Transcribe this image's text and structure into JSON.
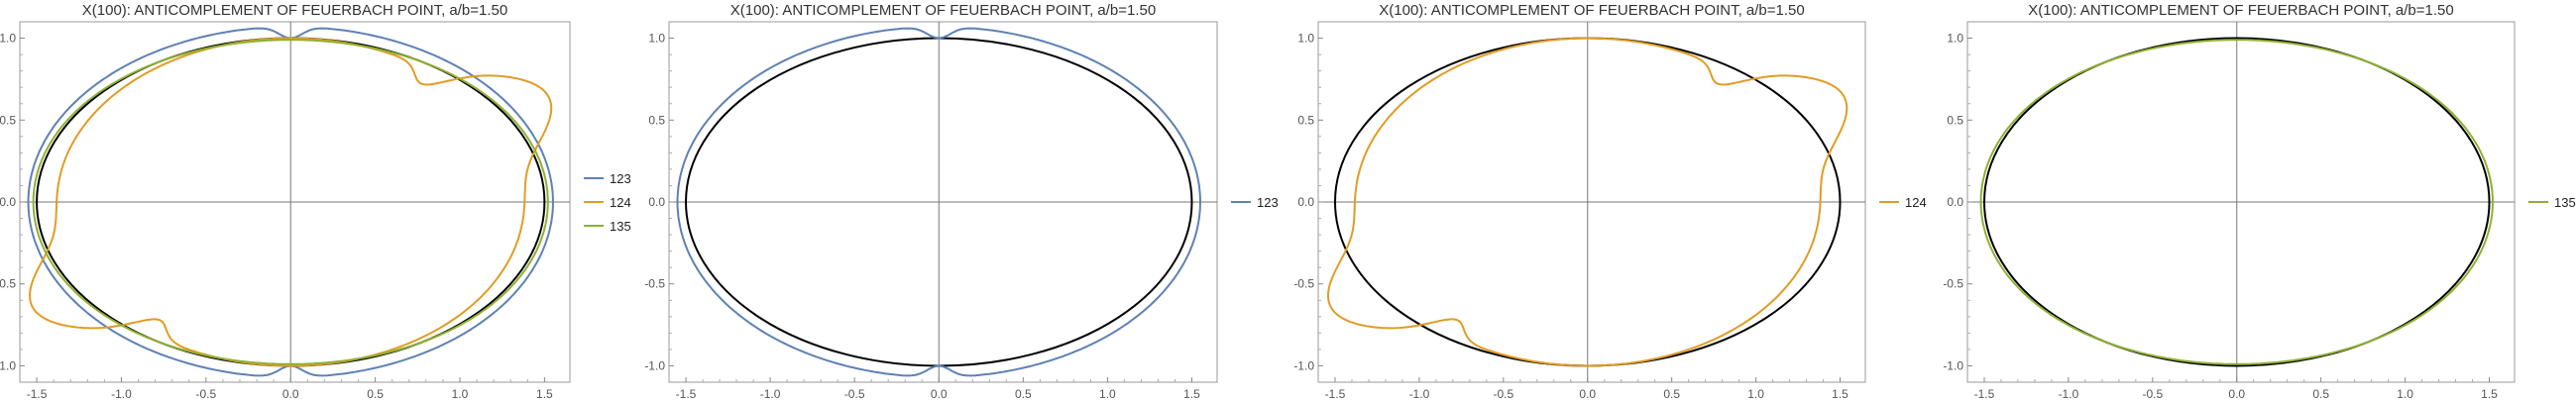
{
  "chart_data": [
    {
      "type": "line",
      "title": "X(100): ANTICOMPLEMENT OF FEUERBACH POINT, a/b=1.50",
      "xlim": [
        -1.6,
        1.65
      ],
      "ylim": [
        -1.1,
        1.1
      ],
      "x_ticks": [
        "-1.5",
        "-1.0",
        "-0.5",
        "0.0",
        "0.5",
        "1.0",
        "1.5"
      ],
      "y_ticks": [
        "-1.0",
        "-0.5",
        "0.0",
        "0.5",
        "1.0"
      ],
      "x_tick_values": [
        -1.5,
        -1.0,
        -0.5,
        0.0,
        0.5,
        1.0,
        1.5
      ],
      "y_tick_values": [
        -1.0,
        -0.5,
        0.0,
        0.5,
        1.0
      ],
      "ellipse": {
        "a": 1.5,
        "b": 1.0,
        "color": "#000000"
      },
      "legend_position": "right",
      "series": [
        {
          "name": "123",
          "color": "#5e81b5"
        },
        {
          "name": "124",
          "color": "#e19c24"
        },
        {
          "name": "135",
          "color": "#8fb032"
        }
      ]
    },
    {
      "type": "line",
      "title": "X(100): ANTICOMPLEMENT OF FEUERBACH POINT, a/b=1.50",
      "xlim": [
        -1.6,
        1.65
      ],
      "ylim": [
        -1.1,
        1.1
      ],
      "x_ticks": [
        "-1.5",
        "-1.0",
        "-0.5",
        "0.0",
        "0.5",
        "1.0",
        "1.5"
      ],
      "y_ticks": [
        "-1.0",
        "-0.5",
        "0.0",
        "0.5",
        "1.0"
      ],
      "x_tick_values": [
        -1.5,
        -1.0,
        -0.5,
        0.0,
        0.5,
        1.0,
        1.5
      ],
      "y_tick_values": [
        -1.0,
        -0.5,
        0.0,
        0.5,
        1.0
      ],
      "ellipse": {
        "a": 1.5,
        "b": 1.0,
        "color": "#000000"
      },
      "legend_position": "right",
      "series": [
        {
          "name": "123",
          "color": "#5e81b5"
        }
      ]
    },
    {
      "type": "line",
      "title": "X(100): ANTICOMPLEMENT OF FEUERBACH POINT, a/b=1.50",
      "xlim": [
        -1.6,
        1.65
      ],
      "ylim": [
        -1.1,
        1.1
      ],
      "x_ticks": [
        "-1.5",
        "-1.0",
        "-0.5",
        "0.0",
        "0.5",
        "1.0",
        "1.5"
      ],
      "y_ticks": [
        "-1.0",
        "-0.5",
        "0.0",
        "0.5",
        "1.0"
      ],
      "x_tick_values": [
        -1.5,
        -1.0,
        -0.5,
        0.0,
        0.5,
        1.0,
        1.5
      ],
      "y_tick_values": [
        -1.0,
        -0.5,
        0.0,
        0.5,
        1.0
      ],
      "ellipse": {
        "a": 1.5,
        "b": 1.0,
        "color": "#000000"
      },
      "legend_position": "right",
      "series": [
        {
          "name": "124",
          "color": "#e19c24"
        }
      ]
    },
    {
      "type": "line",
      "title": "X(100): ANTICOMPLEMENT OF FEUERBACH POINT, a/b=1.50",
      "xlim": [
        -1.6,
        1.65
      ],
      "ylim": [
        -1.1,
        1.1
      ],
      "x_ticks": [
        "-1.5",
        "-1.0",
        "-0.5",
        "0.0",
        "0.5",
        "1.0",
        "1.5"
      ],
      "y_ticks": [
        "-1.0",
        "-0.5",
        "0.0",
        "0.5",
        "1.0"
      ],
      "x_tick_values": [
        -1.5,
        -1.0,
        -0.5,
        0.0,
        0.5,
        1.0,
        1.5
      ],
      "y_tick_values": [
        -1.0,
        -0.5,
        0.0,
        0.5,
        1.0
      ],
      "ellipse": {
        "a": 1.5,
        "b": 1.0,
        "color": "#000000"
      },
      "legend_position": "right",
      "series": [
        {
          "name": "135",
          "color": "#8fb032"
        }
      ]
    }
  ]
}
